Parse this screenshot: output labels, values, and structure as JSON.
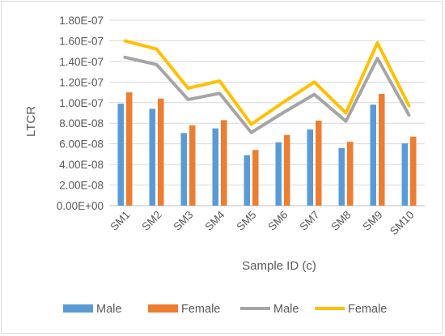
{
  "chart_data": {
    "type": "bar",
    "title": "",
    "xlabel": "Sample ID (c)",
    "ylabel": "LTCR",
    "categories": [
      "SM1",
      "SM2",
      "SM3",
      "SM4",
      "SM5",
      "SM6",
      "SM7",
      "SM8",
      "SM9",
      "SM10"
    ],
    "y_ticks": [
      "0.00E+00",
      "2.00E-08",
      "4.00E-08",
      "6.00E-08",
      "8.00E-08",
      "1.00E-07",
      "1.20E-07",
      "1.40E-07",
      "1.60E-07",
      "1.80E-07"
    ],
    "ylim": [
      0,
      1.8e-07
    ],
    "grid": true,
    "legend_position": "bottom",
    "series": [
      {
        "name": "Male",
        "kind": "bar",
        "color": "#5b9bd5",
        "values": [
          9.9e-08,
          9.4e-08,
          7.05e-08,
          7.5e-08,
          4.9e-08,
          6.15e-08,
          7.4e-08,
          5.6e-08,
          9.8e-08,
          6.05e-08
        ]
      },
      {
        "name": "Female",
        "kind": "bar",
        "color": "#ed7d31",
        "values": [
          1.1e-07,
          1.04e-07,
          7.8e-08,
          8.3e-08,
          5.4e-08,
          6.85e-08,
          8.25e-08,
          6.2e-08,
          1.085e-07,
          6.7e-08
        ]
      },
      {
        "name": "Male",
        "kind": "line",
        "color": "#a5a5a5",
        "values": [
          1.44e-07,
          1.37e-07,
          1.03e-07,
          1.09e-07,
          7.1e-08,
          9e-08,
          1.08e-07,
          8.2e-08,
          1.43e-07,
          8.8e-08
        ]
      },
      {
        "name": "Female",
        "kind": "line",
        "color": "#ffc000",
        "values": [
          1.6e-07,
          1.52e-07,
          1.14e-07,
          1.21e-07,
          7.9e-08,
          1e-07,
          1.2e-07,
          9e-08,
          1.58e-07,
          9.7e-08
        ]
      }
    ]
  }
}
